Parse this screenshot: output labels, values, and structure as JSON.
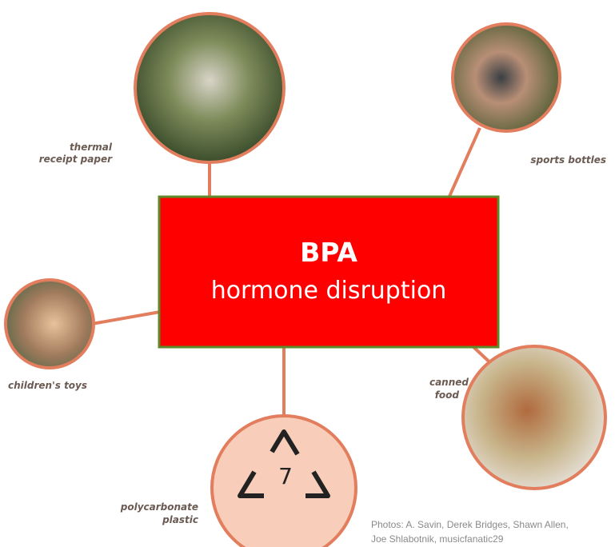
{
  "center": {
    "title": "BPA",
    "subtitle": "hormone disruption"
  },
  "nodes": [
    {
      "label": [
        "thermal",
        "receipt paper"
      ]
    },
    {
      "label": [
        "sports bottles"
      ]
    },
    {
      "label": [
        "children's toys"
      ]
    },
    {
      "label": [
        "polycarbonate",
        "plastic"
      ],
      "symbol": "7"
    },
    {
      "label": [
        "canned",
        "food"
      ]
    }
  ],
  "credit": [
    "Photos: A. Savin, Derek Bridges, Shawn Allen,",
    "Joe Shlabotnik, musicfanatic29"
  ]
}
